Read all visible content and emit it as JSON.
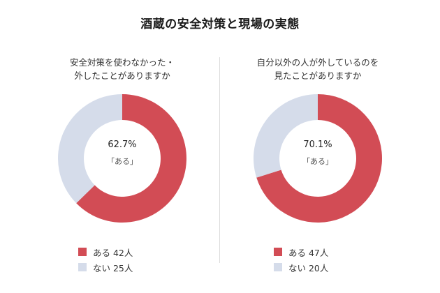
{
  "page": {
    "title": "酒蔵の安全対策と現場の実態"
  },
  "colors": {
    "yes": "#d24c55",
    "no": "#d5dcea"
  },
  "chart_data": [
    {
      "type": "pie",
      "title_lines": [
        "安全対策を使わなかった・",
        "外したことがありますか"
      ],
      "center_value": "62.7%",
      "center_label": "「ある」",
      "slices": [
        {
          "label": "ある",
          "value": 42,
          "legend": "ある 42人"
        },
        {
          "label": "ない",
          "value": 25,
          "legend": "ない 25人"
        }
      ]
    },
    {
      "type": "pie",
      "title_lines": [
        "自分以外の人が外しているのを",
        "見たことがありますか"
      ],
      "center_value": "70.1%",
      "center_label": "「ある」",
      "slices": [
        {
          "label": "ある",
          "value": 47,
          "legend": "ある 47人"
        },
        {
          "label": "ない",
          "value": 20,
          "legend": "ない 20人"
        }
      ]
    }
  ]
}
